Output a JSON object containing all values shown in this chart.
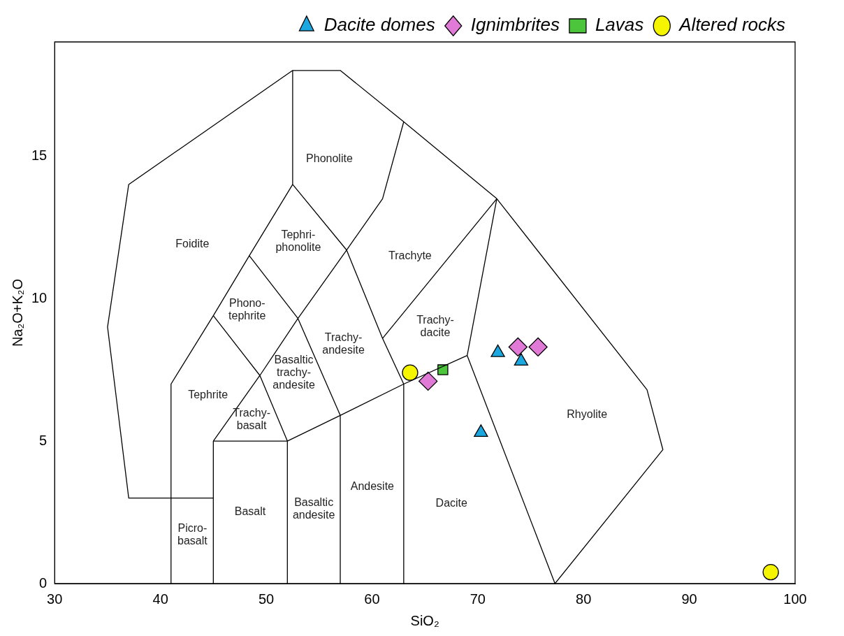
{
  "chart_data": {
    "type": "scatter",
    "xlabel": "SiO₂",
    "ylabel": "Na₂O+K₂O",
    "xlim": [
      30,
      100
    ],
    "xticks": [
      30,
      40,
      50,
      60,
      70,
      80,
      90,
      100
    ],
    "ylim": [
      0,
      19
    ],
    "yticks": [
      0,
      5,
      10,
      15
    ],
    "legend": "top right",
    "series": [
      {
        "type": "line",
        "color": "#000000",
        "x": [
          45,
          37,
          35,
          37,
          52.5,
          57,
          63,
          71.8,
          86,
          87.5,
          77.3,
          null,
          41,
          41,
          45,
          48.4,
          52.5,
          57.6,
          61,
          63,
          null,
          52.5,
          52.5,
          null,
          45,
          45,
          52,
          52,
          null,
          52,
          57,
          63,
          69,
          77.3,
          null,
          57,
          57,
          null,
          63,
          63,
          61,
          57.6,
          null,
          61,
          71.8,
          69,
          null,
          45,
          49.4,
          52,
          null,
          45,
          49.4,
          53,
          57,
          null,
          48.4,
          53,
          57.6
        ],
        "values": [
          3,
          3,
          9,
          14,
          18,
          18,
          16.2,
          13.5,
          6.8,
          4.7,
          0,
          null,
          0,
          7,
          9.4,
          11.5,
          14,
          11.7,
          13.5,
          16.2,
          null,
          14,
          18,
          null,
          0,
          5,
          5,
          0,
          null,
          5,
          5.9,
          7,
          8,
          0,
          null,
          0,
          5.9,
          null,
          0,
          7,
          8.6,
          11.7,
          null,
          8.6,
          13.5,
          8,
          null,
          5,
          7.3,
          5,
          null,
          9.4,
          7.3,
          9.3,
          5.9,
          null,
          11.5,
          9.3,
          11.7
        ]
      },
      {
        "name": "Dacite domes",
        "marker": "triangle",
        "color": "#1ba7e0",
        "x": [
          71.9,
          74.1,
          70.3
        ],
        "values": [
          8.1,
          7.8,
          5.3
        ]
      },
      {
        "name": "Ignimbrites",
        "marker": "diamond",
        "color": "#e07ad6",
        "x": [
          65.3,
          73.8,
          75.7
        ],
        "values": [
          7.1,
          8.3,
          8.3
        ]
      },
      {
        "name": "Lavas",
        "marker": "square",
        "color": "#4cc43c",
        "x": [
          66.7
        ],
        "values": [
          7.5
        ]
      },
      {
        "name": "Altered rocks",
        "marker": "circle",
        "color": "#f5f500",
        "x": [
          63.6,
          97.7
        ],
        "values": [
          7.4,
          0.4
        ]
      }
    ],
    "annotations": [
      "Foidite",
      "Phonolite",
      "Tephri-\nphonolite",
      "Trachyte",
      "Phono-\ntephrite",
      "Trachy-\nandesite",
      "Trachy-\ndacite",
      "Tephrite",
      "Basaltic\ntrachy-\nandesite",
      "Trachy-\nbasalt",
      "Rhyolite",
      "Picro-\nbasalt",
      "Basalt",
      "Basaltic\nandesite",
      "Andesite",
      "Dacite"
    ]
  }
}
